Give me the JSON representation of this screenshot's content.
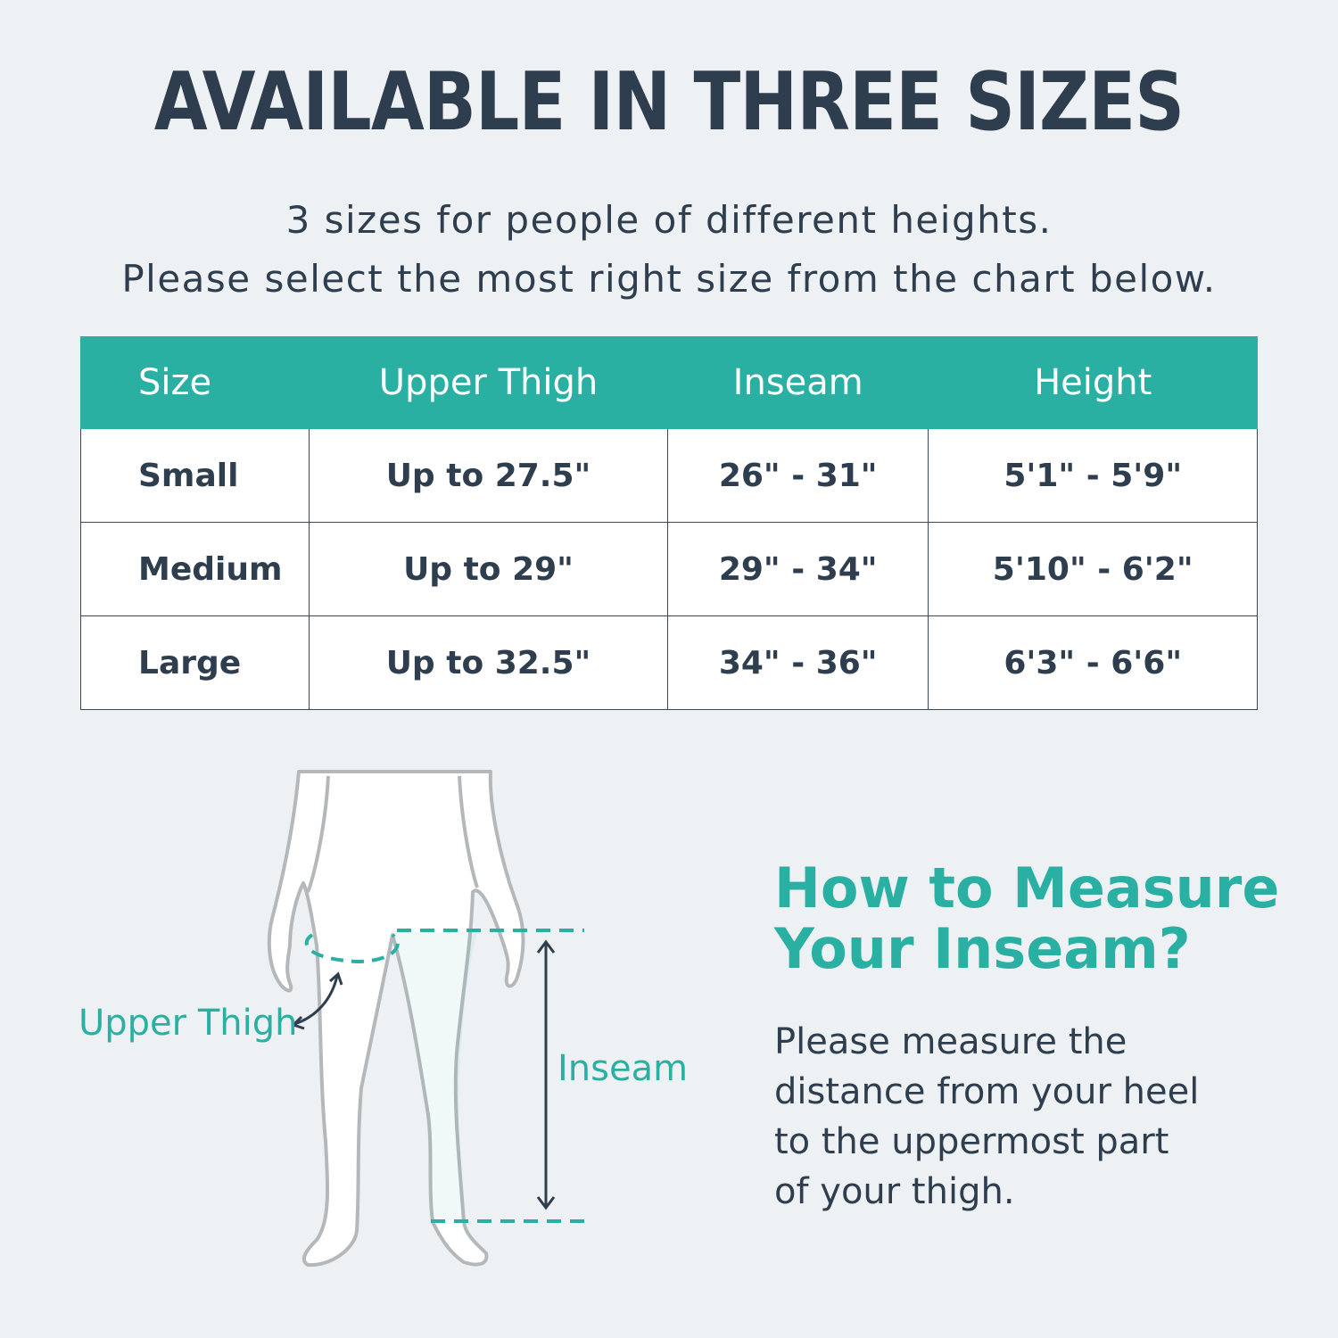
{
  "title": "AVAILABLE IN THREE SIZES",
  "subtitle": [
    "3 sizes for people of different heights.",
    "Please select the most right size from the chart below."
  ],
  "size_table": {
    "headers": [
      "Size",
      "Upper Thigh",
      "Inseam",
      "Height"
    ],
    "rows": [
      [
        "Small",
        "Up to 27.5\"",
        "26\" - 31\"",
        "5'1\" - 5'9\""
      ],
      [
        "Medium",
        "Up to 29\"",
        "29\" - 34\"",
        "5'10\" - 6'2\""
      ],
      [
        "Large",
        "Up to 32.5\"",
        "34\" - 36\"",
        "6'3\" - 6'6\""
      ]
    ]
  },
  "figure": {
    "upper_thigh_label": "Upper Thigh",
    "inseam_label": "Inseam"
  },
  "how_to": {
    "heading": [
      "How to Measure",
      "Your Inseam?"
    ],
    "text": [
      "Please measure the",
      "distance from your heel",
      "to the uppermost part",
      "of your thigh."
    ]
  },
  "colors": {
    "accent": "#2ab0a2",
    "text": "#2f3e4e",
    "background": "#edf1f4"
  }
}
